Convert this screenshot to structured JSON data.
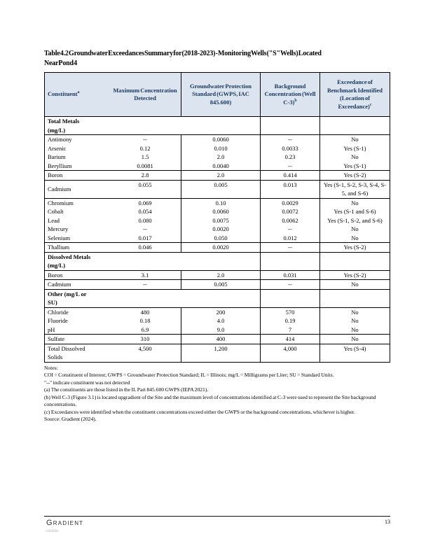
{
  "title": {
    "line1": "Table 4.2 Groundwater Exceedances Summary for (2018-2023) - Monitoring Wells (\"S\" Wells) Located",
    "line2": "Near Pond 4"
  },
  "table": {
    "headers": {
      "constituent": "Constituent",
      "constituent_sup": "a",
      "max": "Maximum Concentration Detected",
      "gwps": "Groundwater Protection Standard (GWPS, IAC 845.600)",
      "background": "Background Concentration (Well C-3)",
      "background_sup": "b",
      "exceedance": "Exceedance of Benchmark Identified (Location of Exceedance)",
      "exceedance_sup": "c"
    },
    "rows": [
      {
        "type": "section",
        "label": "Total Metals\n(mg/L)"
      },
      {
        "label": "Antimony",
        "max": "--",
        "gwps": "0.0060",
        "bg": "--",
        "ex": "No"
      },
      {
        "label": "Arsenic",
        "max": "0.12",
        "gwps": "0.010",
        "bg": "0.0033",
        "ex": "Yes (S-1)"
      },
      {
        "label": "Barium",
        "max": "1.5",
        "gwps": "2.0",
        "bg": "0.23",
        "ex": "No"
      },
      {
        "label": "Beryllium",
        "max": "0.0081",
        "gwps": "0.0040",
        "bg": "--",
        "ex": "Yes (S-1)"
      },
      {
        "label": "Boron",
        "max": "2.8",
        "gwps": "2.0",
        "bg": "0.414",
        "ex": "Yes (S-2)"
      },
      {
        "label": "Cadmium",
        "max": "0.055",
        "gwps": "0.005",
        "bg": "0.013",
        "ex": "Yes (S-1, S-2, S-3, S-4, S-5, and S-6)"
      },
      {
        "label": "Chromium",
        "max": "0.069",
        "gwps": "0.10",
        "bg": "0.0029",
        "ex": "No"
      },
      {
        "label": "Cobalt",
        "max": "0.054",
        "gwps": "0.0060",
        "bg": "0.0072",
        "ex": "Yes (S-1 and S-6)"
      },
      {
        "label": "Lead",
        "max": "0.080",
        "gwps": "0.0075",
        "bg": "0.0062",
        "ex": "Yes (S-1, S-2, and S-6)"
      },
      {
        "label": "Mercury",
        "max": "--",
        "gwps": "0.0020",
        "bg": "--",
        "ex": "No"
      },
      {
        "label": "Selenium",
        "max": "0.017",
        "gwps": "0.050",
        "bg": "0.012",
        "ex": "No"
      },
      {
        "label": "Thallium",
        "max": "0.046",
        "gwps": "0.0020",
        "bg": "--",
        "ex": "Yes (S-2)"
      },
      {
        "type": "section",
        "label": "Dissolved Metals\n(mg/L)"
      },
      {
        "label": "Boron",
        "max": "3.1",
        "gwps": "2.0",
        "bg": "0.031",
        "ex": "Yes (S-2)"
      },
      {
        "label": "Cadmium",
        "max": "--",
        "gwps": "0.005",
        "bg": "--",
        "ex": "No"
      },
      {
        "type": "section",
        "label": "Other (mg/L or\nSU)"
      },
      {
        "label": "Chloride",
        "max": "480",
        "gwps": "200",
        "bg": "570",
        "ex": "No"
      },
      {
        "label": "Fluoride",
        "max": "0.18",
        "gwps": "4.0",
        "bg": "0.19",
        "ex": "No"
      },
      {
        "label": "pH",
        "max": "6.9",
        "gwps": "9.0",
        "bg": "7",
        "ex": "No"
      },
      {
        "label": "Sulfate",
        "max": "310",
        "gwps": "400",
        "bg": "414",
        "ex": "No"
      },
      {
        "label": "Total Dissolved\nSolids",
        "max": "4,500",
        "gwps": "1,200",
        "bg": "4,000",
        "ex": "Yes (S-4)"
      }
    ]
  },
  "notes": {
    "heading": "Notes:",
    "lines": [
      "COI = Constituent of Interest; GWPS = Groundwater Protection Standard; IL = Illinois; mg/L = Milligrams per Liter; SU = Standard Units.",
      "\"--\" indicate constituent was not detected",
      "(a) The constituents are those listed in the IL Part 845.600 GWPS (IEPA 2021).",
      "(b) Well C-3 (Figure 3.1) is located upgradient of the Site and the maximum level of concentrations identified at C-3 were used to represent the Site background concentrations.",
      "(c) Exceedances were identified when the constituent concentrations exceed either the GWPS or the background concentrations, whichever is higher.",
      "Source: Gradient (2024)."
    ]
  },
  "footer": {
    "logo": "Gradient",
    "page_number": "13",
    "doc_id": "r10302b"
  },
  "colors": {
    "header_fill": "#dce4ef",
    "header_text": "#17365d",
    "border": "#000000"
  }
}
